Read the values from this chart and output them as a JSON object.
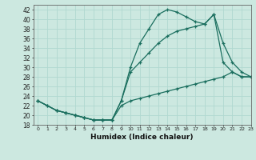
{
  "xlabel": "Humidex (Indice chaleur)",
  "bg_color": "#cce8e0",
  "line_color": "#1a6e5e",
  "grid_color": "#b0d8d0",
  "xlim": [
    -0.5,
    23
  ],
  "ylim": [
    18,
    43
  ],
  "xticks": [
    0,
    1,
    2,
    3,
    4,
    5,
    6,
    7,
    8,
    9,
    10,
    11,
    12,
    13,
    14,
    15,
    16,
    17,
    18,
    19,
    20,
    21,
    22,
    23
  ],
  "yticks": [
    18,
    20,
    22,
    24,
    26,
    28,
    30,
    32,
    34,
    36,
    38,
    40,
    42
  ],
  "line1_x": [
    0,
    1,
    2,
    3,
    4,
    5,
    6,
    7,
    8,
    9,
    10,
    11,
    12,
    13,
    14,
    15,
    16,
    17,
    18,
    19,
    20,
    21,
    22,
    23
  ],
  "line1_y": [
    23,
    22,
    21,
    20.5,
    20,
    19.5,
    19,
    19,
    19,
    23,
    30,
    35,
    38,
    41,
    42,
    41.5,
    40.5,
    39.5,
    39,
    41,
    31,
    29,
    28,
    28
  ],
  "line2_x": [
    0,
    2,
    3,
    4,
    5,
    6,
    7,
    8,
    9,
    10,
    11,
    12,
    13,
    14,
    15,
    16,
    17,
    18,
    19,
    20,
    21,
    22,
    23
  ],
  "line2_y": [
    23,
    21,
    20.5,
    20,
    19.5,
    19,
    19,
    19,
    23,
    29,
    31,
    33,
    35,
    36.5,
    37.5,
    38,
    38.5,
    39,
    41,
    35,
    31,
    29,
    28
  ],
  "line3_x": [
    0,
    1,
    2,
    3,
    4,
    5,
    6,
    7,
    8,
    9,
    10,
    11,
    12,
    13,
    14,
    15,
    16,
    17,
    18,
    19,
    20,
    21,
    22,
    23
  ],
  "line3_y": [
    23,
    22,
    21,
    20.5,
    20,
    19.5,
    19,
    19,
    19,
    22,
    23,
    23.5,
    24,
    24.5,
    25,
    25.5,
    26,
    26.5,
    27,
    27.5,
    28,
    29,
    28,
    28
  ]
}
